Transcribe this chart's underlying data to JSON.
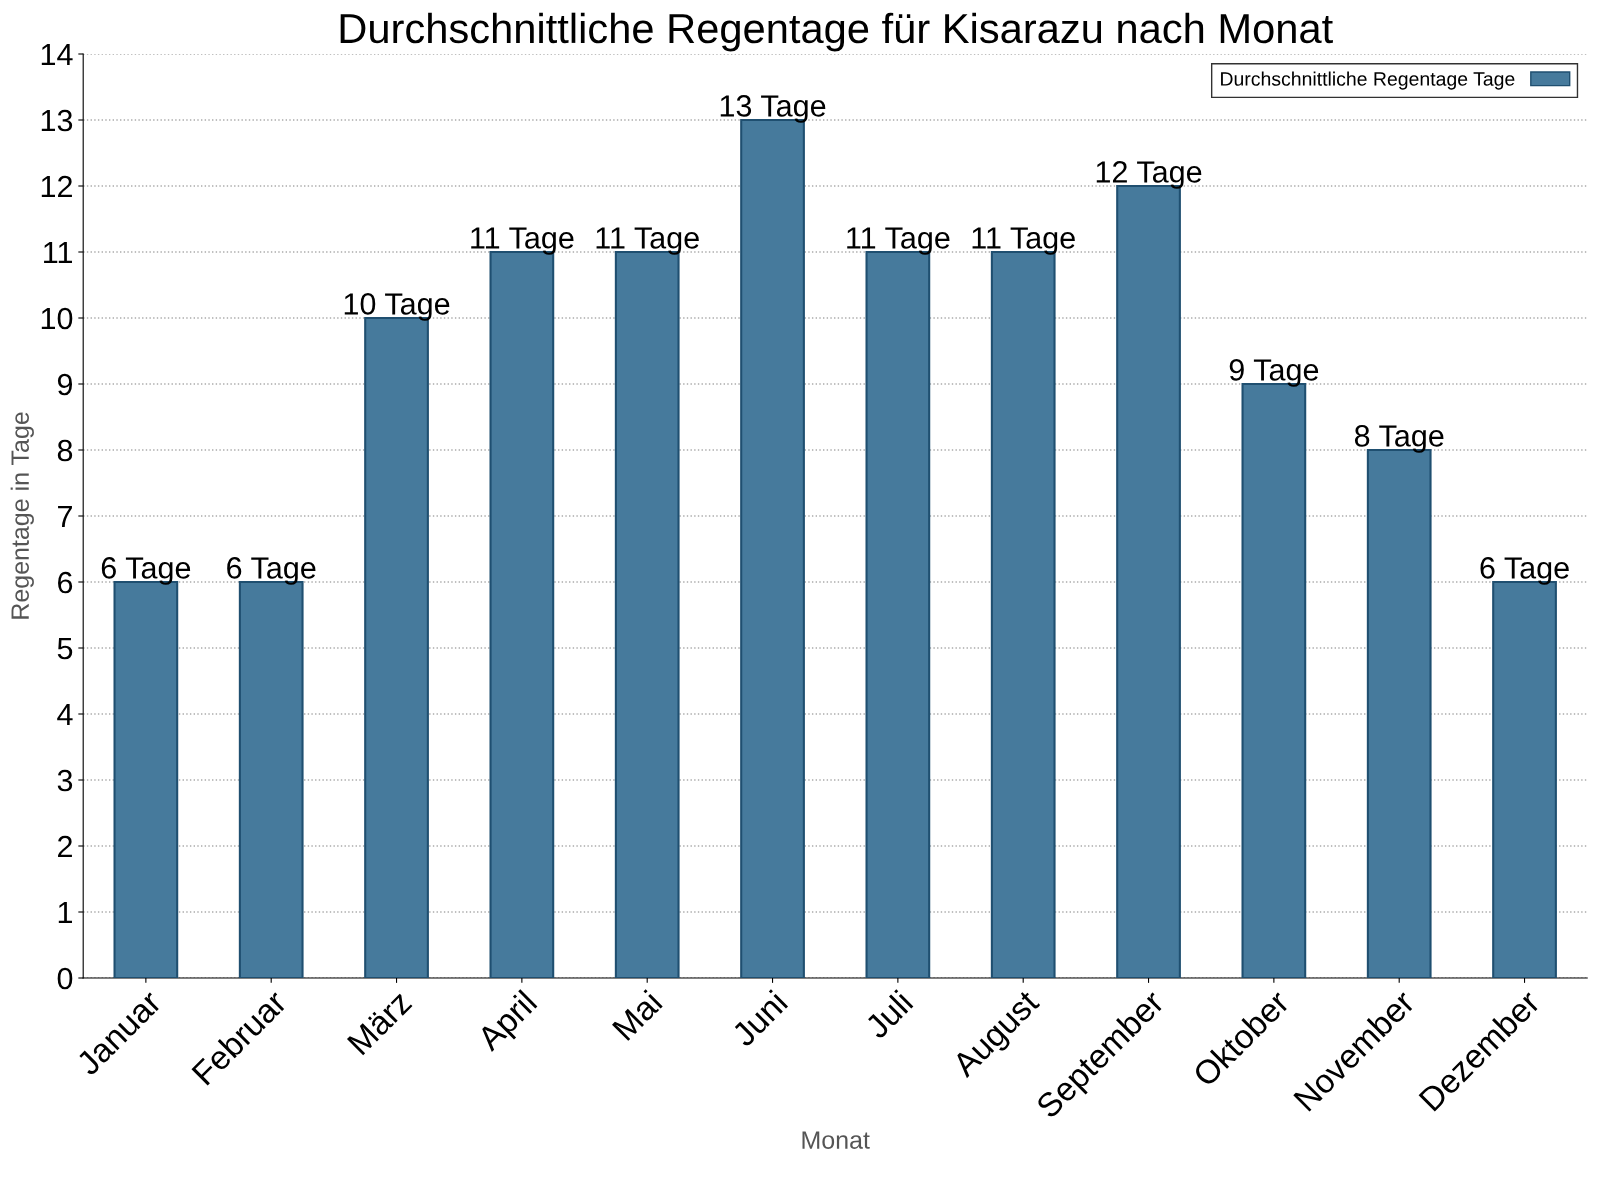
{
  "chart_data": {
    "type": "bar",
    "title": "Durchschnittliche Regentage für Kisarazu nach Monat",
    "xlabel": "Monat",
    "ylabel": "Regentage in Tage",
    "categories": [
      "Januar",
      "Februar",
      "März",
      "April",
      "Mai",
      "Juni",
      "Juli",
      "August",
      "September",
      "Oktober",
      "November",
      "Dezember"
    ],
    "series": [
      {
        "name": "Durchschnittliche Regentage Tage",
        "color": "#467a9c",
        "values": [
          6,
          6,
          10,
          11,
          11,
          13,
          11,
          11,
          12,
          9,
          8,
          6
        ],
        "value_labels": [
          "6 Tage",
          "6 Tage",
          "10 Tage",
          "11 Tage",
          "11 Tage",
          "13 Tage",
          "11 Tage",
          "11 Tage",
          "12 Tage",
          "9 Tage",
          "8 Tage",
          "6 Tage"
        ]
      }
    ],
    "ylim": [
      0,
      14
    ],
    "yticks": [
      0,
      1,
      2,
      3,
      4,
      5,
      6,
      7,
      8,
      9,
      10,
      11,
      12,
      13,
      14
    ],
    "grid": "y",
    "legend": "top right"
  }
}
